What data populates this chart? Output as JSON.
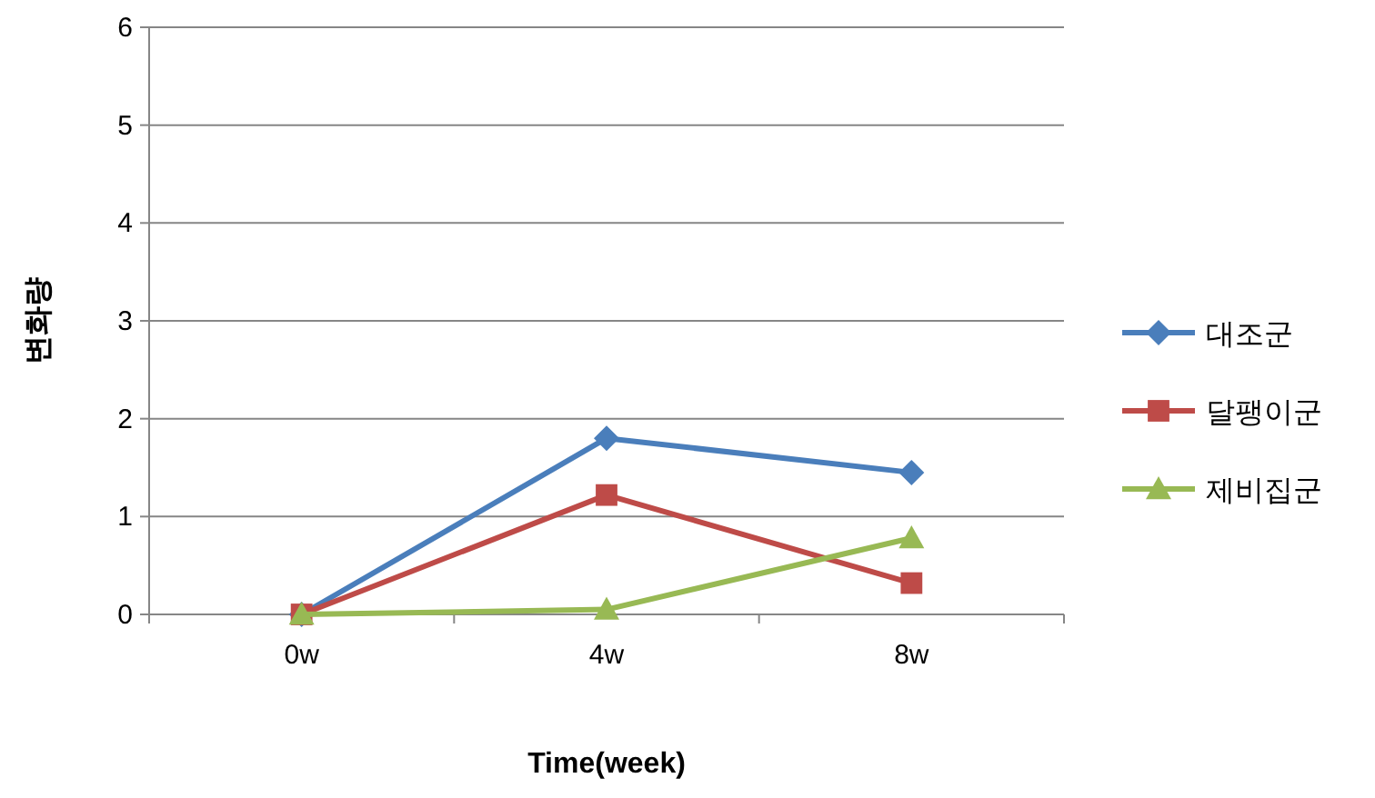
{
  "chart_data": {
    "type": "line",
    "xlabel": "Time(week)",
    "ylabel": "변화량",
    "categories": [
      "0w",
      "4w",
      "8w"
    ],
    "ylim": [
      0,
      6
    ],
    "yticks": [
      0,
      1,
      2,
      3,
      4,
      5,
      6
    ],
    "grid": "y",
    "legend": "right",
    "series": [
      {
        "name": "대조군",
        "color": "#4a7ebb",
        "marker": "diamond",
        "values": [
          0,
          1.8,
          1.45
        ]
      },
      {
        "name": "달팽이군",
        "color": "#be4b48",
        "marker": "square",
        "values": [
          0,
          1.22,
          0.32
        ]
      },
      {
        "name": "제비집군",
        "color": "#98b954",
        "marker": "triangle",
        "values": [
          0,
          0.05,
          0.78
        ]
      }
    ]
  }
}
